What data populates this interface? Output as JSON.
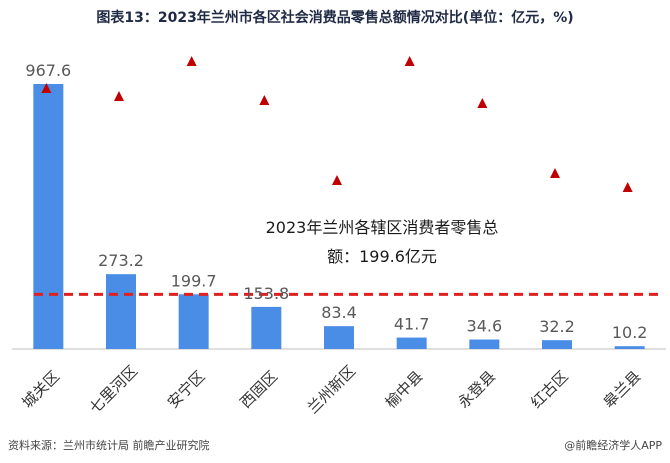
{
  "title": "图表13：2023年兰州市各区社会消费品零售总额情况对比(单位：亿元，%)",
  "footer": {
    "source": "资料来源：兰州市统计局 前瞻产业研究院",
    "brand": "@前瞻经济学人APP"
  },
  "colors": {
    "bar": "#4a8de6",
    "marker": "#c00000",
    "average_line": "#e02020",
    "axis": "#bfbfbf",
    "value_label": "#595959",
    "category_label": "#333333"
  },
  "chart_data": {
    "type": "bar",
    "categories": [
      "城关区",
      "七里河区",
      "安宁区",
      "西固区",
      "兰州新区",
      "榆中县",
      "永登县",
      "红古区",
      "皋兰县"
    ],
    "series": [
      {
        "type": "bar",
        "values": [
          967.6,
          273.2,
          199.7,
          153.8,
          83.4,
          41.7,
          34.6,
          32.2,
          10.2
        ]
      },
      {
        "type": "scatter",
        "marker": "triangle",
        "values": [
          null,
          null,
          null,
          null,
          null,
          null,
          null,
          null,
          null
        ]
      }
    ],
    "value_labels": [
      "967.6",
      "273.2",
      "199.7",
      "153.8",
      "83.4",
      "41.7",
      "34.6",
      "32.2",
      "10.2"
    ],
    "average_line": {
      "value": 199.6,
      "style": "dashed"
    },
    "annotation": {
      "line1": "2023年兰州各辖区消费者零售总",
      "line2": "额：199.6亿元"
    },
    "ylim": [
      0,
      1000
    ],
    "grid": false,
    "legend": "none"
  }
}
